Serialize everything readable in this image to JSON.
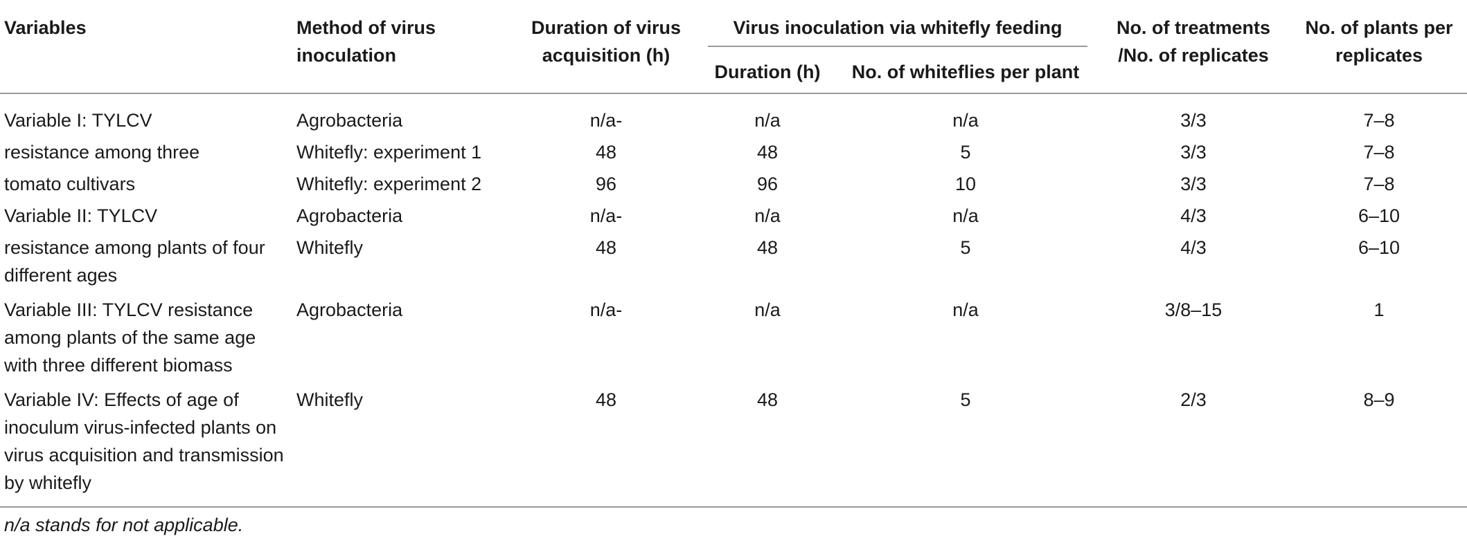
{
  "headers": {
    "variables": "Variables",
    "method": "Method of virus inoculation",
    "duration_acq": "Duration of virus acquisition (h)",
    "group": "Virus inoculation via whitefly feeding",
    "duration": "Duration (h)",
    "whiteflies": "No. of whiteflies per plant",
    "treatments": "No. of treatments /No. of replicates",
    "plants": "No. of plants per replicates"
  },
  "rows": [
    {
      "variable": "Variable I: TYLCV",
      "method": "Agrobacteria",
      "acq": "n/a-",
      "dur": "n/a",
      "wf": "n/a",
      "treat": "3/3",
      "plants": "7–8"
    },
    {
      "variable": "resistance among three",
      "method": "Whitefly: experiment 1",
      "acq": "48",
      "dur": "48",
      "wf": "5",
      "treat": "3/3",
      "plants": "7–8"
    },
    {
      "variable": "tomato cultivars",
      "method": "Whitefly: experiment 2",
      "acq": "96",
      "dur": "96",
      "wf": "10",
      "treat": "3/3",
      "plants": "7–8"
    },
    {
      "variable": "Variable II: TYLCV",
      "method": "Agrobacteria",
      "acq": "n/a-",
      "dur": "n/a",
      "wf": "n/a",
      "treat": "4/3",
      "plants": "6–10"
    },
    {
      "variable": "resistance among plants of four different ages",
      "method": "Whitefly",
      "acq": "48",
      "dur": "48",
      "wf": "5",
      "treat": "4/3",
      "plants": "6–10"
    },
    {
      "variable": "Variable III: TYLCV resistance among plants of the same age with three different biomass",
      "method": "Agrobacteria",
      "acq": "n/a-",
      "dur": "n/a",
      "wf": "n/a",
      "treat": "3/8–15",
      "plants": "1"
    },
    {
      "variable": "Variable IV: Effects of age of inoculum virus-infected plants on virus acquisition and transmission by whitefly",
      "method": "Whitefly",
      "acq": "48",
      "dur": "48",
      "wf": "5",
      "treat": "2/3",
      "plants": "8–9"
    }
  ],
  "footnote": "n/a stands for not applicable."
}
